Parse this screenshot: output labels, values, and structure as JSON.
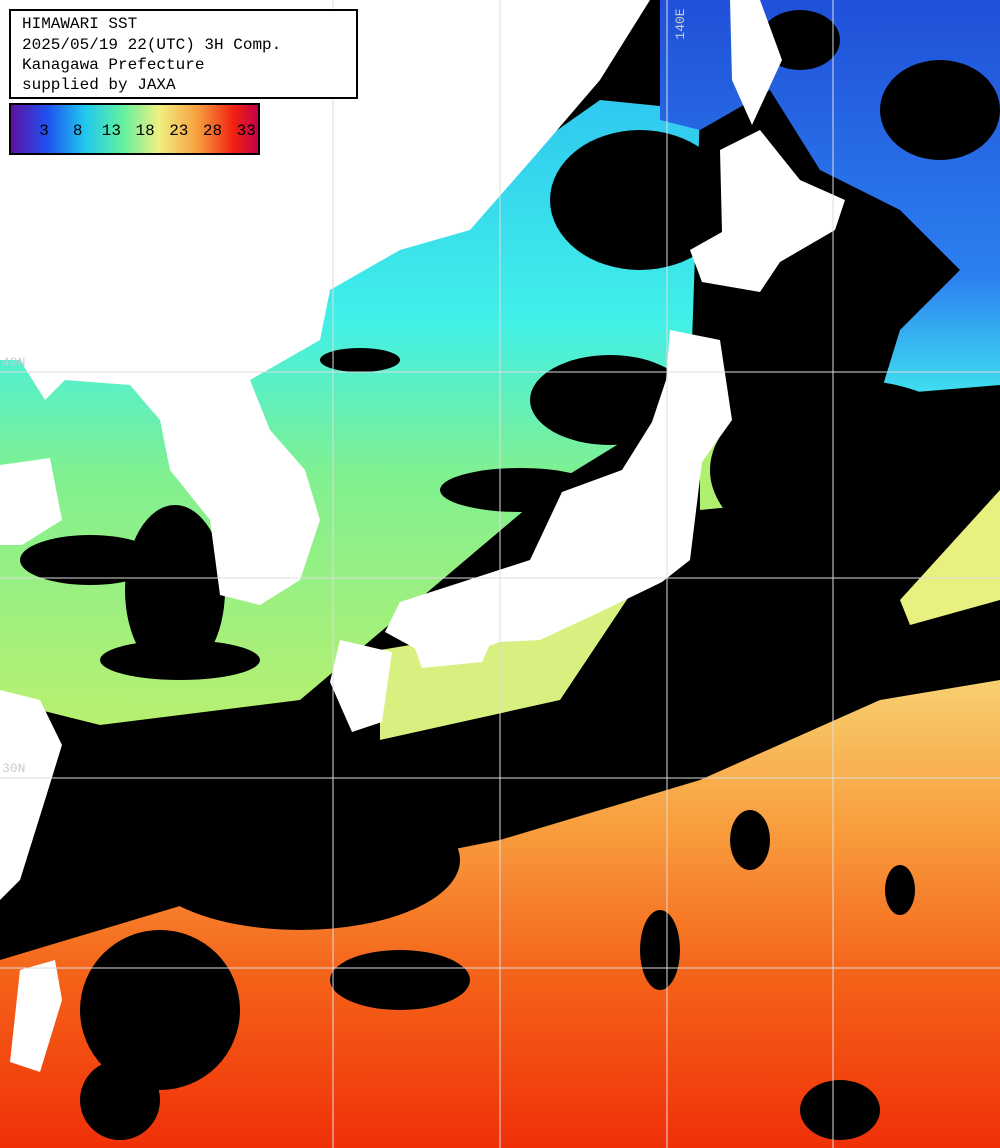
{
  "header": {
    "lines": [
      "HIMAWARI SST",
      "2025/05/19 22(UTC) 3H Comp.",
      "Kanagawa Prefecture",
      "supplied by JAXA"
    ]
  },
  "colorbar": {
    "labels": [
      "3",
      "8",
      "13",
      "18",
      "23",
      "28",
      "33"
    ]
  },
  "grid": {
    "lon_labels": [
      "140E"
    ],
    "lat_labels": [
      "40N",
      "30N"
    ]
  }
}
